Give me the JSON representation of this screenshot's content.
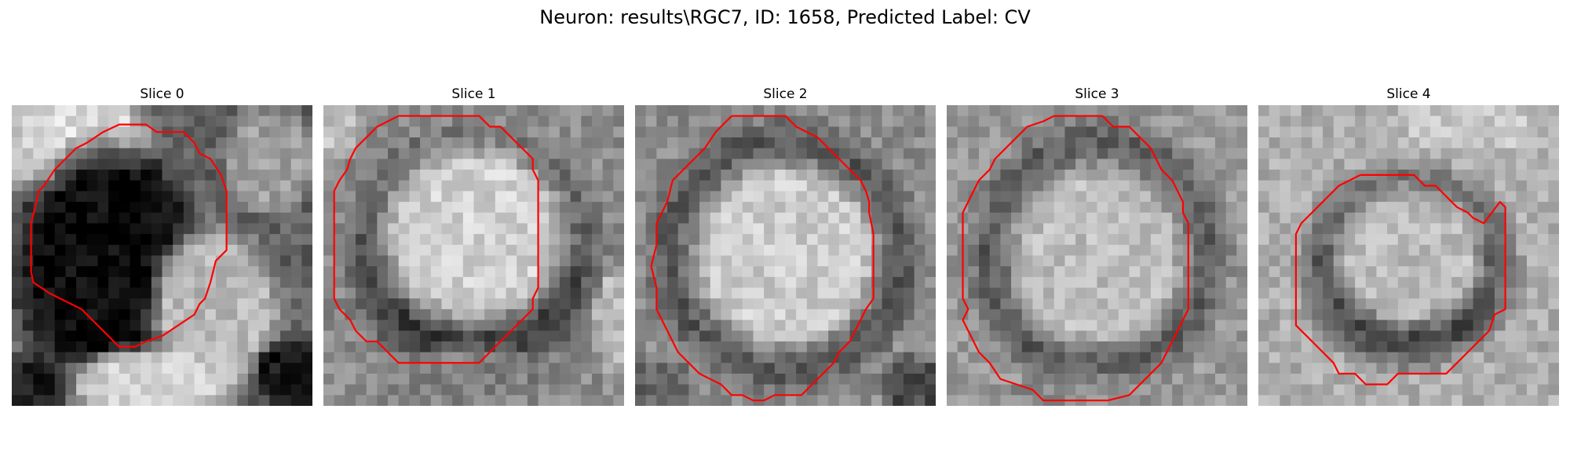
{
  "title": "Neuron: results\\RGC7, ID: 1658, Predicted Label: CV",
  "colors": {
    "background": "#ffffff",
    "contour": "#ff0000"
  },
  "panels": [
    {
      "title": "Slice 0",
      "grid_size": 28,
      "image": {
        "background_gray": 0.38,
        "regions": [
          {
            "center": [
              5,
              3
            ],
            "radius": [
              9,
              6
            ],
            "gray": 0.86
          },
          {
            "center": [
              1,
              3
            ],
            "radius": [
              3,
              5
            ],
            "gray": 0.8
          },
          {
            "center": [
              9,
              15
            ],
            "radius": [
              10,
              13
            ],
            "gray": 0.03
          },
          {
            "center": [
              24,
              5
            ],
            "radius": [
              5,
              6
            ],
            "gray": 0.62
          },
          {
            "center": [
              19,
              19
            ],
            "radius": [
              7,
              9
            ],
            "gray": 0.72
          },
          {
            "center": [
              13,
              26
            ],
            "radius": [
              9,
              4
            ],
            "gray": 0.82
          },
          {
            "center": [
              2,
              26
            ],
            "radius": [
              4,
              3
            ],
            "gray": 0.12
          },
          {
            "center": [
              26,
              25
            ],
            "radius": [
              4,
              4
            ],
            "gray": 0.08
          }
        ],
        "noise": 0.2,
        "seed": 11
      },
      "contour": [
        [
          8.5,
          2.5
        ],
        [
          10,
          1.8
        ],
        [
          12.5,
          1.8
        ],
        [
          13.5,
          2.5
        ],
        [
          16,
          2.5
        ],
        [
          17,
          3.5
        ],
        [
          17.5,
          4.5
        ],
        [
          18.5,
          5
        ],
        [
          19.5,
          6.5
        ],
        [
          20,
          8
        ],
        [
          20,
          13.5
        ],
        [
          19,
          14.5
        ],
        [
          18.5,
          16.5
        ],
        [
          18,
          18
        ],
        [
          17.5,
          18.5
        ],
        [
          17,
          19.5
        ],
        [
          15.5,
          20.5
        ],
        [
          14,
          21.5
        ],
        [
          12.5,
          22
        ],
        [
          11.5,
          22.5
        ],
        [
          10,
          22.5
        ],
        [
          9,
          21.5
        ],
        [
          8,
          20.5
        ],
        [
          7,
          19.5
        ],
        [
          6.5,
          19
        ],
        [
          5.5,
          18.5
        ],
        [
          4.5,
          18
        ],
        [
          3.5,
          17.5
        ],
        [
          2,
          16.5
        ],
        [
          1.8,
          15.5
        ],
        [
          1.8,
          11
        ],
        [
          2.2,
          9.5
        ],
        [
          2.5,
          8
        ],
        [
          3,
          7.5
        ],
        [
          4,
          6
        ],
        [
          5,
          5
        ],
        [
          6,
          4
        ],
        [
          7,
          3.5
        ],
        [
          8.5,
          2.5
        ]
      ]
    },
    {
      "title": "Slice 1",
      "grid_size": 28,
      "image": {
        "background_gray": 0.55,
        "regions": [
          {
            "center": [
              14,
              14
            ],
            "radius": [
              13,
              13
            ],
            "gray": 0.18
          },
          {
            "center": [
              14,
              12
            ],
            "radius": [
              10.5,
              10
            ],
            "gray": 0.82
          },
          {
            "center": [
              14,
              25
            ],
            "radius": [
              10,
              3
            ],
            "gray": 0.5
          },
          {
            "center": [
              1,
              2
            ],
            "radius": [
              3,
              3
            ],
            "gray": 0.75
          },
          {
            "center": [
              27,
              20
            ],
            "radius": [
              2,
              6
            ],
            "gray": 0.72
          }
        ],
        "noise": 0.2,
        "seed": 23
      },
      "contour": [
        [
          7,
          1
        ],
        [
          14.5,
          1
        ],
        [
          15.5,
          2
        ],
        [
          16.5,
          2
        ],
        [
          17.5,
          3
        ],
        [
          18.5,
          4
        ],
        [
          19.5,
          5
        ],
        [
          19.5,
          6
        ],
        [
          20,
          7
        ],
        [
          20,
          17
        ],
        [
          19.5,
          18
        ],
        [
          19.5,
          19
        ],
        [
          18.5,
          20
        ],
        [
          17.5,
          21
        ],
        [
          16.5,
          22
        ],
        [
          15.5,
          23
        ],
        [
          14.5,
          24
        ],
        [
          13,
          24
        ],
        [
          7,
          24
        ],
        [
          6,
          23
        ],
        [
          5,
          22
        ],
        [
          4,
          22
        ],
        [
          3,
          21
        ],
        [
          2.5,
          20
        ],
        [
          1.5,
          19
        ],
        [
          1,
          18
        ],
        [
          1,
          8
        ],
        [
          1.5,
          7
        ],
        [
          2.2,
          6
        ],
        [
          2.5,
          5
        ],
        [
          3,
          4
        ],
        [
          4,
          3
        ],
        [
          5,
          2
        ],
        [
          6,
          1.5
        ],
        [
          7,
          1
        ]
      ]
    },
    {
      "title": "Slice 2",
      "grid_size": 28,
      "image": {
        "background_gray": 0.55,
        "regions": [
          {
            "center": [
              14,
              14
            ],
            "radius": [
              13.5,
              13.5
            ],
            "gray": 0.14
          },
          {
            "center": [
              14,
              14
            ],
            "radius": [
              11,
              11
            ],
            "gray": 0.8
          },
          {
            "center": [
              2,
              26
            ],
            "radius": [
              4,
              3
            ],
            "gray": 0.4
          },
          {
            "center": [
              26,
              26
            ],
            "radius": [
              4,
              3
            ],
            "gray": 0.3
          }
        ],
        "noise": 0.2,
        "seed": 37
      },
      "contour": [
        [
          9,
          1
        ],
        [
          14,
          1
        ],
        [
          15,
          2
        ],
        [
          17,
          3
        ],
        [
          18,
          4
        ],
        [
          19,
          5
        ],
        [
          20,
          6
        ],
        [
          21,
          7
        ],
        [
          21.5,
          8
        ],
        [
          21.8,
          9
        ],
        [
          21.8,
          10
        ],
        [
          22.2,
          12
        ],
        [
          22.2,
          18
        ],
        [
          21.5,
          19
        ],
        [
          21,
          20
        ],
        [
          20.5,
          21
        ],
        [
          20,
          22
        ],
        [
          19,
          23
        ],
        [
          18.5,
          24
        ],
        [
          17.5,
          25
        ],
        [
          16.5,
          26
        ],
        [
          15.5,
          27
        ],
        [
          13,
          27
        ],
        [
          12,
          27.5
        ],
        [
          11,
          27.5
        ],
        [
          10,
          27
        ],
        [
          9,
          27
        ],
        [
          8,
          26
        ],
        [
          7,
          25.5
        ],
        [
          6,
          25
        ],
        [
          5,
          24
        ],
        [
          4,
          23
        ],
        [
          3.5,
          22
        ],
        [
          3,
          21
        ],
        [
          2,
          19
        ],
        [
          2,
          17
        ],
        [
          1.5,
          15
        ],
        [
          2,
          13
        ],
        [
          2,
          11
        ],
        [
          3,
          9
        ],
        [
          3.5,
          7
        ],
        [
          4.5,
          6
        ],
        [
          5.5,
          5
        ],
        [
          6.5,
          4
        ],
        [
          7.5,
          2.5
        ],
        [
          8.5,
          1.5
        ],
        [
          9,
          1
        ]
      ]
    },
    {
      "title": "Slice 3",
      "grid_size": 28,
      "image": {
        "background_gray": 0.6,
        "regions": [
          {
            "center": [
              14,
              14
            ],
            "radius": [
              13,
              13.5
            ],
            "gray": 0.16
          },
          {
            "center": [
              14,
              14
            ],
            "radius": [
              10.5,
              11
            ],
            "gray": 0.74
          },
          {
            "center": [
              14,
              27
            ],
            "radius": [
              12,
              2
            ],
            "gray": 0.55
          }
        ],
        "noise": 0.2,
        "seed": 49
      },
      "contour": [
        [
          10,
          1
        ],
        [
          14.5,
          1
        ],
        [
          15.5,
          2
        ],
        [
          17,
          2
        ],
        [
          18,
          3
        ],
        [
          19,
          4
        ],
        [
          19.5,
          5
        ],
        [
          20,
          6
        ],
        [
          21,
          7
        ],
        [
          21.5,
          8
        ],
        [
          22,
          9
        ],
        [
          22,
          10
        ],
        [
          22.5,
          11
        ],
        [
          22.5,
          19
        ],
        [
          22,
          20
        ],
        [
          21.5,
          21
        ],
        [
          21,
          22
        ],
        [
          20.5,
          23
        ],
        [
          20,
          24
        ],
        [
          19,
          25
        ],
        [
          17,
          27
        ],
        [
          15,
          27.5
        ],
        [
          9,
          27.5
        ],
        [
          8,
          26.5
        ],
        [
          6.5,
          26
        ],
        [
          5,
          25.5
        ],
        [
          4,
          24
        ],
        [
          3,
          23
        ],
        [
          2.5,
          22
        ],
        [
          2,
          21
        ],
        [
          1.5,
          20
        ],
        [
          2,
          19
        ],
        [
          1.5,
          18
        ],
        [
          1.5,
          10
        ],
        [
          2,
          9
        ],
        [
          2.5,
          8
        ],
        [
          3,
          7
        ],
        [
          4,
          6
        ],
        [
          4.5,
          5
        ],
        [
          5.5,
          4
        ],
        [
          6.5,
          3
        ],
        [
          7.5,
          2
        ],
        [
          9,
          1.5
        ],
        [
          10,
          1
        ]
      ]
    },
    {
      "title": "Slice 4",
      "grid_size": 28,
      "image": {
        "background_gray": 0.68,
        "regions": [
          {
            "center": [
              14,
              15
            ],
            "radius": [
              11,
              10.5
            ],
            "gray": 0.2
          },
          {
            "center": [
              14,
              14
            ],
            "radius": [
              8.5,
              8
            ],
            "gray": 0.74
          },
          {
            "center": [
              20,
              2
            ],
            "radius": [
              8,
              3
            ],
            "gray": 0.78
          }
        ],
        "noise": 0.2,
        "seed": 61
      },
      "contour": [
        [
          9.5,
          6.5
        ],
        [
          14.5,
          6.5
        ],
        [
          15.5,
          7.5
        ],
        [
          16.5,
          7.5
        ],
        [
          17.5,
          8.5
        ],
        [
          18.5,
          9.5
        ],
        [
          19.5,
          10
        ],
        [
          20,
          10.5
        ],
        [
          21,
          11
        ],
        [
          22.5,
          9
        ],
        [
          23,
          9.5
        ],
        [
          23,
          19
        ],
        [
          22,
          19.5
        ],
        [
          21.5,
          21
        ],
        [
          20.5,
          22
        ],
        [
          19.5,
          23
        ],
        [
          18.5,
          24
        ],
        [
          17.5,
          25
        ],
        [
          13,
          25
        ],
        [
          12,
          26
        ],
        [
          10,
          26
        ],
        [
          9,
          25
        ],
        [
          7.5,
          25
        ],
        [
          7,
          24
        ],
        [
          6.5,
          23.5
        ],
        [
          5.5,
          22.5
        ],
        [
          4.5,
          21.5
        ],
        [
          3.5,
          20.5
        ],
        [
          3.5,
          12
        ],
        [
          4,
          11
        ],
        [
          4.5,
          10.5
        ],
        [
          5.5,
          9.5
        ],
        [
          6.5,
          8.5
        ],
        [
          7.5,
          7.5
        ],
        [
          8.5,
          7
        ],
        [
          9.5,
          6.5
        ]
      ]
    }
  ]
}
